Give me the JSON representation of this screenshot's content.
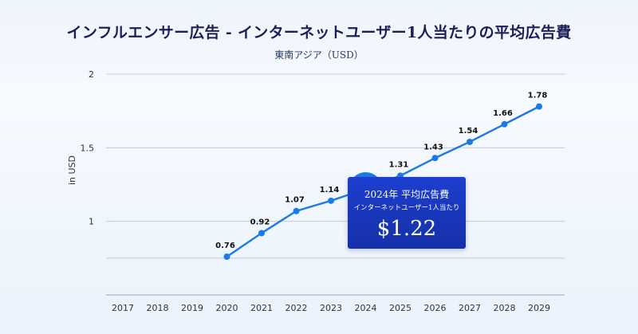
{
  "title": "インフルエンサー広告 - インターネットユーザー1人当たりの平均広告費",
  "subtitle": "東南アジア（USD）",
  "callout": {
    "heading": "2024年 平均広告費",
    "subheading": "インターネットユーザー1人当たり",
    "value": "$1.22"
  },
  "colors": {
    "line": "#1a7be6",
    "highlight": "#1a7be6",
    "callout_bg": "#1a35b8",
    "title": "#1a2055"
  },
  "chart_data": {
    "type": "line",
    "title": "インフルエンサー広告 - インターネットユーザー1人当たりの平均広告費",
    "subtitle": "東南アジア（USD）",
    "ylabel": "in USD",
    "xlabel": "",
    "categories": [
      "2017",
      "2018",
      "2019",
      "2020",
      "2021",
      "2022",
      "2023",
      "2024",
      "2025",
      "2026",
      "2027",
      "2028",
      "2029"
    ],
    "yticks": [
      "2",
      "1.5",
      "1"
    ],
    "ylim": [
      0.5,
      2
    ],
    "grid": true,
    "highlight": "2024",
    "series": [
      {
        "values": [
          null,
          null,
          null,
          0.76,
          0.92,
          1.07,
          1.14,
          1.22,
          1.31,
          1.43,
          1.54,
          1.66,
          1.78
        ],
        "labels": [
          null,
          null,
          null,
          "0.76",
          "0.92",
          "1.07",
          "1.14",
          "1.22",
          "1.31",
          "1.43",
          "1.54",
          "1.66",
          "1.78"
        ]
      }
    ]
  }
}
